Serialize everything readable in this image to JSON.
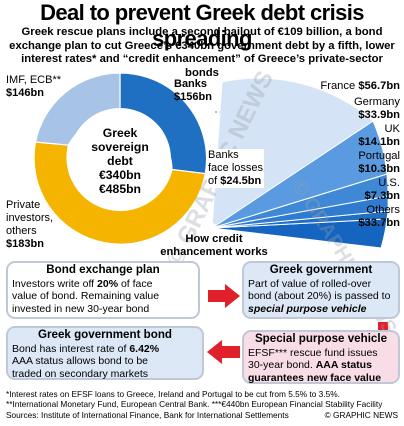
{
  "title": "Deal to prevent Greek debt crisis spreading",
  "subtitle": "Greek rescue plans include a second bailout of €109 billion, a bond exchange plan to cut Greece’s €340bn government debt by a fifth, lower interest rates* and “credit enhancement” of Greece’s private-sector bonds",
  "donut": {
    "center_l1": "Greek",
    "center_l2": "sovereign",
    "center_l3": "debt",
    "center_l4": "€340bn",
    "center_l5": "€485bn",
    "imf_label": "IMF, ECB**",
    "imf_value": "$146bn",
    "banks_label": "Banks",
    "banks_value": "$156bn",
    "private_l1": "Private",
    "private_l2": "investors,",
    "private_l3": "others",
    "private_value": "$183bn",
    "colors": {
      "banks": "#1f6fc2",
      "private": "#f4b400",
      "imf": "#a7c4e6"
    }
  },
  "losses": {
    "l1": "Banks",
    "l2": "face losses",
    "l3": "of",
    "value": "$24.5bn"
  },
  "countries": [
    {
      "name": "France",
      "value": "$56.7bn"
    },
    {
      "name": "Germany",
      "value": "$33.9bn"
    },
    {
      "name": "UK",
      "value": "$14.1bn"
    },
    {
      "name": "Portugal",
      "value": "$10.3bn"
    },
    {
      "name": "U.S.",
      "value": "$7.3bn"
    },
    {
      "name": "Others",
      "value": "$33.7bn"
    }
  ],
  "how": {
    "l1": "How credit",
    "l2": "enhancement works"
  },
  "box1": {
    "heading": "Bond exchange plan",
    "l1a": "Investors write off ",
    "l1b": "20%",
    "l1c": " of face",
    "l2": "value of bond. Remaining value",
    "l3": "invested in new 30-year bond"
  },
  "box2": {
    "heading": "Greek government",
    "l1": "Part of value of rolled-over",
    "l2": "bond (about 20%) is passed to",
    "l3": "special purpose vehicle"
  },
  "box3": {
    "heading": "Special purpose vehicle",
    "l1": "EFSF*** rescue fund issues",
    "l2a": "30-year bond. ",
    "l2b": "AAA status",
    "l3": "guarantees new face value"
  },
  "box4": {
    "heading": "Greek government bond",
    "l1a": "Bond has interest rate of ",
    "l1b": "6.42%",
    "l2": "AAA status allows bond to be",
    "l3": "traded on secondary markets"
  },
  "footnotes": {
    "f1": "*Interest rates on EFSF loans to Greece, Ireland and Portugal to be cut from 5.5% to 3.5%.",
    "f2": "**International Monetary Fund, European Central Bank. ***€440bn European Financial Stability Facility",
    "f3": "Sources: Institute of International Finance, Bank for International Settlements",
    "credit": "© GRAPHIC NEWS"
  },
  "watermark": "© GRAPHIC NEWS"
}
